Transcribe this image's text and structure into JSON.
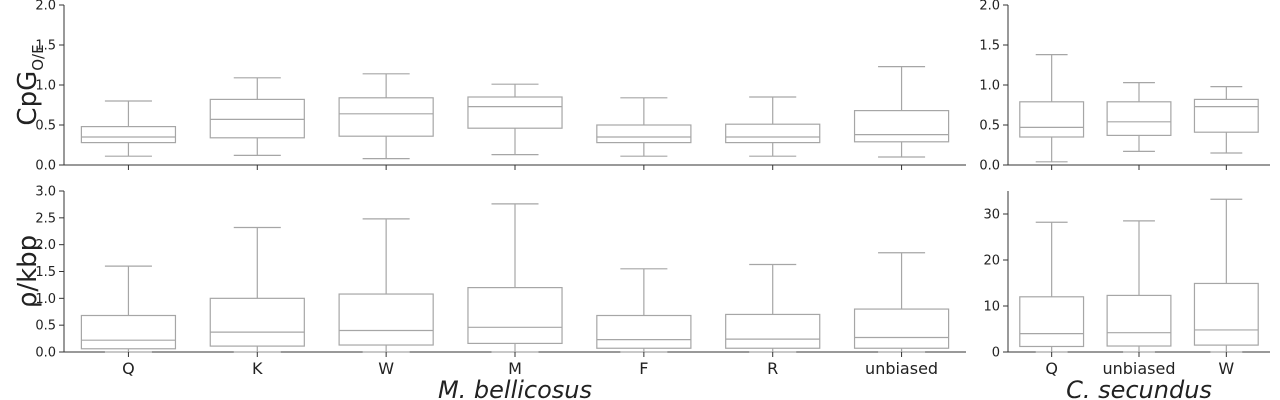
{
  "chart_data": [
    {
      "type": "box",
      "panel": "M. bellicosus CpG O/E",
      "ylabel": "CpG",
      "ylabel_sub": "O/E",
      "xlabel": "",
      "ylim": [
        0,
        2.0
      ],
      "yticks": [
        "0.0",
        "0.5",
        "1.0",
        "1.5",
        "2.0"
      ],
      "categories": [
        "Q",
        "K",
        "W",
        "M",
        "F",
        "R",
        "unbiased"
      ],
      "boxes": [
        {
          "whislo": 0.11,
          "q1": 0.28,
          "med": 0.35,
          "q3": 0.48,
          "whishi": 0.8
        },
        {
          "whislo": 0.12,
          "q1": 0.34,
          "med": 0.57,
          "q3": 0.82,
          "whishi": 1.09
        },
        {
          "whislo": 0.08,
          "q1": 0.36,
          "med": 0.64,
          "q3": 0.84,
          "whishi": 1.14
        },
        {
          "whislo": 0.13,
          "q1": 0.46,
          "med": 0.73,
          "q3": 0.85,
          "whishi": 1.01
        },
        {
          "whislo": 0.11,
          "q1": 0.28,
          "med": 0.35,
          "q3": 0.5,
          "whishi": 0.84
        },
        {
          "whislo": 0.11,
          "q1": 0.28,
          "med": 0.35,
          "q3": 0.51,
          "whishi": 0.85
        },
        {
          "whislo": 0.1,
          "q1": 0.29,
          "med": 0.38,
          "q3": 0.68,
          "whishi": 1.23
        }
      ]
    },
    {
      "type": "box",
      "panel": "C. secundus CpG O/E",
      "ylabel": "",
      "xlabel": "",
      "ylim": [
        0,
        2.0
      ],
      "yticks": [
        "0.0",
        "0.5",
        "1.0",
        "1.5",
        "2.0"
      ],
      "categories": [
        "Q",
        "unbiased",
        "W"
      ],
      "boxes": [
        {
          "whislo": 0.04,
          "q1": 0.35,
          "med": 0.47,
          "q3": 0.79,
          "whishi": 1.38
        },
        {
          "whislo": 0.17,
          "q1": 0.37,
          "med": 0.54,
          "q3": 0.79,
          "whishi": 1.03
        },
        {
          "whislo": 0.15,
          "q1": 0.41,
          "med": 0.73,
          "q3": 0.82,
          "whishi": 0.98
        }
      ]
    },
    {
      "type": "box",
      "panel": "M. bellicosus rho/kbp",
      "ylabel": "ρ/kbp",
      "xlabel": "M. bellicosus",
      "ylim": [
        0,
        3.0
      ],
      "yticks": [
        "0.0",
        "0.5",
        "1.0",
        "1.5",
        "2.0",
        "2.5",
        "3.0"
      ],
      "categories": [
        "Q",
        "K",
        "W",
        "M",
        "F",
        "R",
        "unbiased"
      ],
      "boxes": [
        {
          "whislo": 0.0,
          "q1": 0.06,
          "med": 0.22,
          "q3": 0.68,
          "whishi": 1.6
        },
        {
          "whislo": 0.0,
          "q1": 0.11,
          "med": 0.37,
          "q3": 1.0,
          "whishi": 2.32
        },
        {
          "whislo": 0.0,
          "q1": 0.13,
          "med": 0.4,
          "q3": 1.08,
          "whishi": 2.48
        },
        {
          "whislo": 0.0,
          "q1": 0.16,
          "med": 0.46,
          "q3": 1.2,
          "whishi": 2.76
        },
        {
          "whislo": 0.0,
          "q1": 0.07,
          "med": 0.23,
          "q3": 0.68,
          "whishi": 1.55
        },
        {
          "whislo": 0.0,
          "q1": 0.07,
          "med": 0.24,
          "q3": 0.7,
          "whishi": 1.63
        },
        {
          "whislo": 0.0,
          "q1": 0.07,
          "med": 0.27,
          "q3": 0.8,
          "whishi": 1.85
        }
      ]
    },
    {
      "type": "box",
      "panel": "C. secundus rho/kbp",
      "ylabel": "",
      "xlabel": "C. secundus",
      "ylim": [
        0,
        35
      ],
      "yticks": [
        "0",
        "10",
        "20",
        "30"
      ],
      "categories": [
        "Q",
        "unbiased",
        "W"
      ],
      "boxes": [
        {
          "whislo": 0.0,
          "q1": 1.2,
          "med": 4.0,
          "q3": 12.0,
          "whishi": 28.2
        },
        {
          "whislo": 0.0,
          "q1": 1.3,
          "med": 4.2,
          "q3": 12.3,
          "whishi": 28.5
        },
        {
          "whislo": 0.0,
          "q1": 1.5,
          "med": 4.8,
          "q3": 14.9,
          "whishi": 33.2
        }
      ]
    }
  ]
}
